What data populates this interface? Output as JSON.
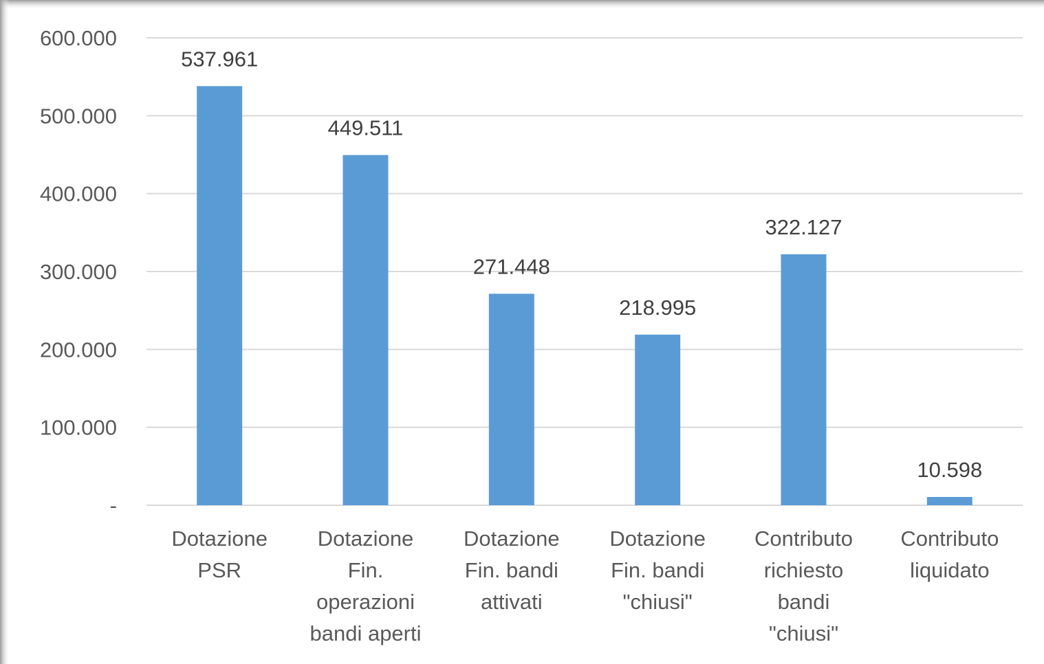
{
  "chart_data": {
    "type": "bar",
    "categories": [
      [
        "Dotazione",
        "PSR"
      ],
      [
        "Dotazione",
        "Fin.",
        "operazioni",
        "bandi aperti"
      ],
      [
        "Dotazione",
        "Fin. bandi",
        "attivati"
      ],
      [
        "Dotazione",
        "Fin. bandi",
        "\"chiusi\""
      ],
      [
        "Contributo",
        "richiesto",
        "bandi",
        "\"chiusi\""
      ],
      [
        "Contributo",
        "liquidato"
      ]
    ],
    "values": [
      537961,
      449511,
      271448,
      218995,
      322127,
      10598
    ],
    "data_labels": [
      "537.961",
      "449.511",
      "271.448",
      "218.995",
      "322.127",
      "10.598"
    ],
    "y_ticks": [
      0,
      100000,
      200000,
      300000,
      400000,
      500000,
      600000
    ],
    "y_tick_labels": [
      "-",
      "100.000",
      "200.000",
      "300.000",
      "400.000",
      "500.000",
      "600.000"
    ],
    "ylim": [
      0,
      600000
    ],
    "grid": true,
    "legend": "none",
    "bar_color": "#5b9bd5",
    "grid_color": "#d9d9d9",
    "title": "",
    "xlabel": "",
    "ylabel": ""
  }
}
